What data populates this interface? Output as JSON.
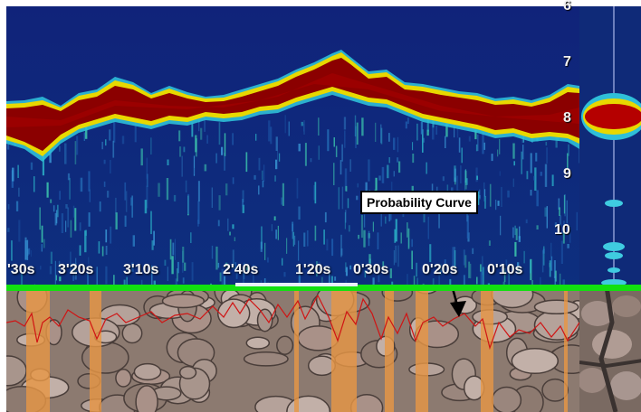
{
  "depth_scale": {
    "labels": [
      "6",
      "7",
      "8",
      "9",
      "10"
    ]
  },
  "time_axis": {
    "labels": [
      "'30s",
      "3'20s",
      "3'10s",
      "2'40s",
      "1'20s",
      "0'30s",
      "0'20s",
      "0'10s"
    ]
  },
  "annotation": {
    "label": "Probability Curve"
  },
  "colors": {
    "background_water": "#0f2a78",
    "bottom_echo": "#8b0000",
    "fringe_yellow": "#e8d800",
    "timeline_green": "#12e010",
    "curve_red": "#d01414",
    "highlight_bar": "#e69645"
  }
}
